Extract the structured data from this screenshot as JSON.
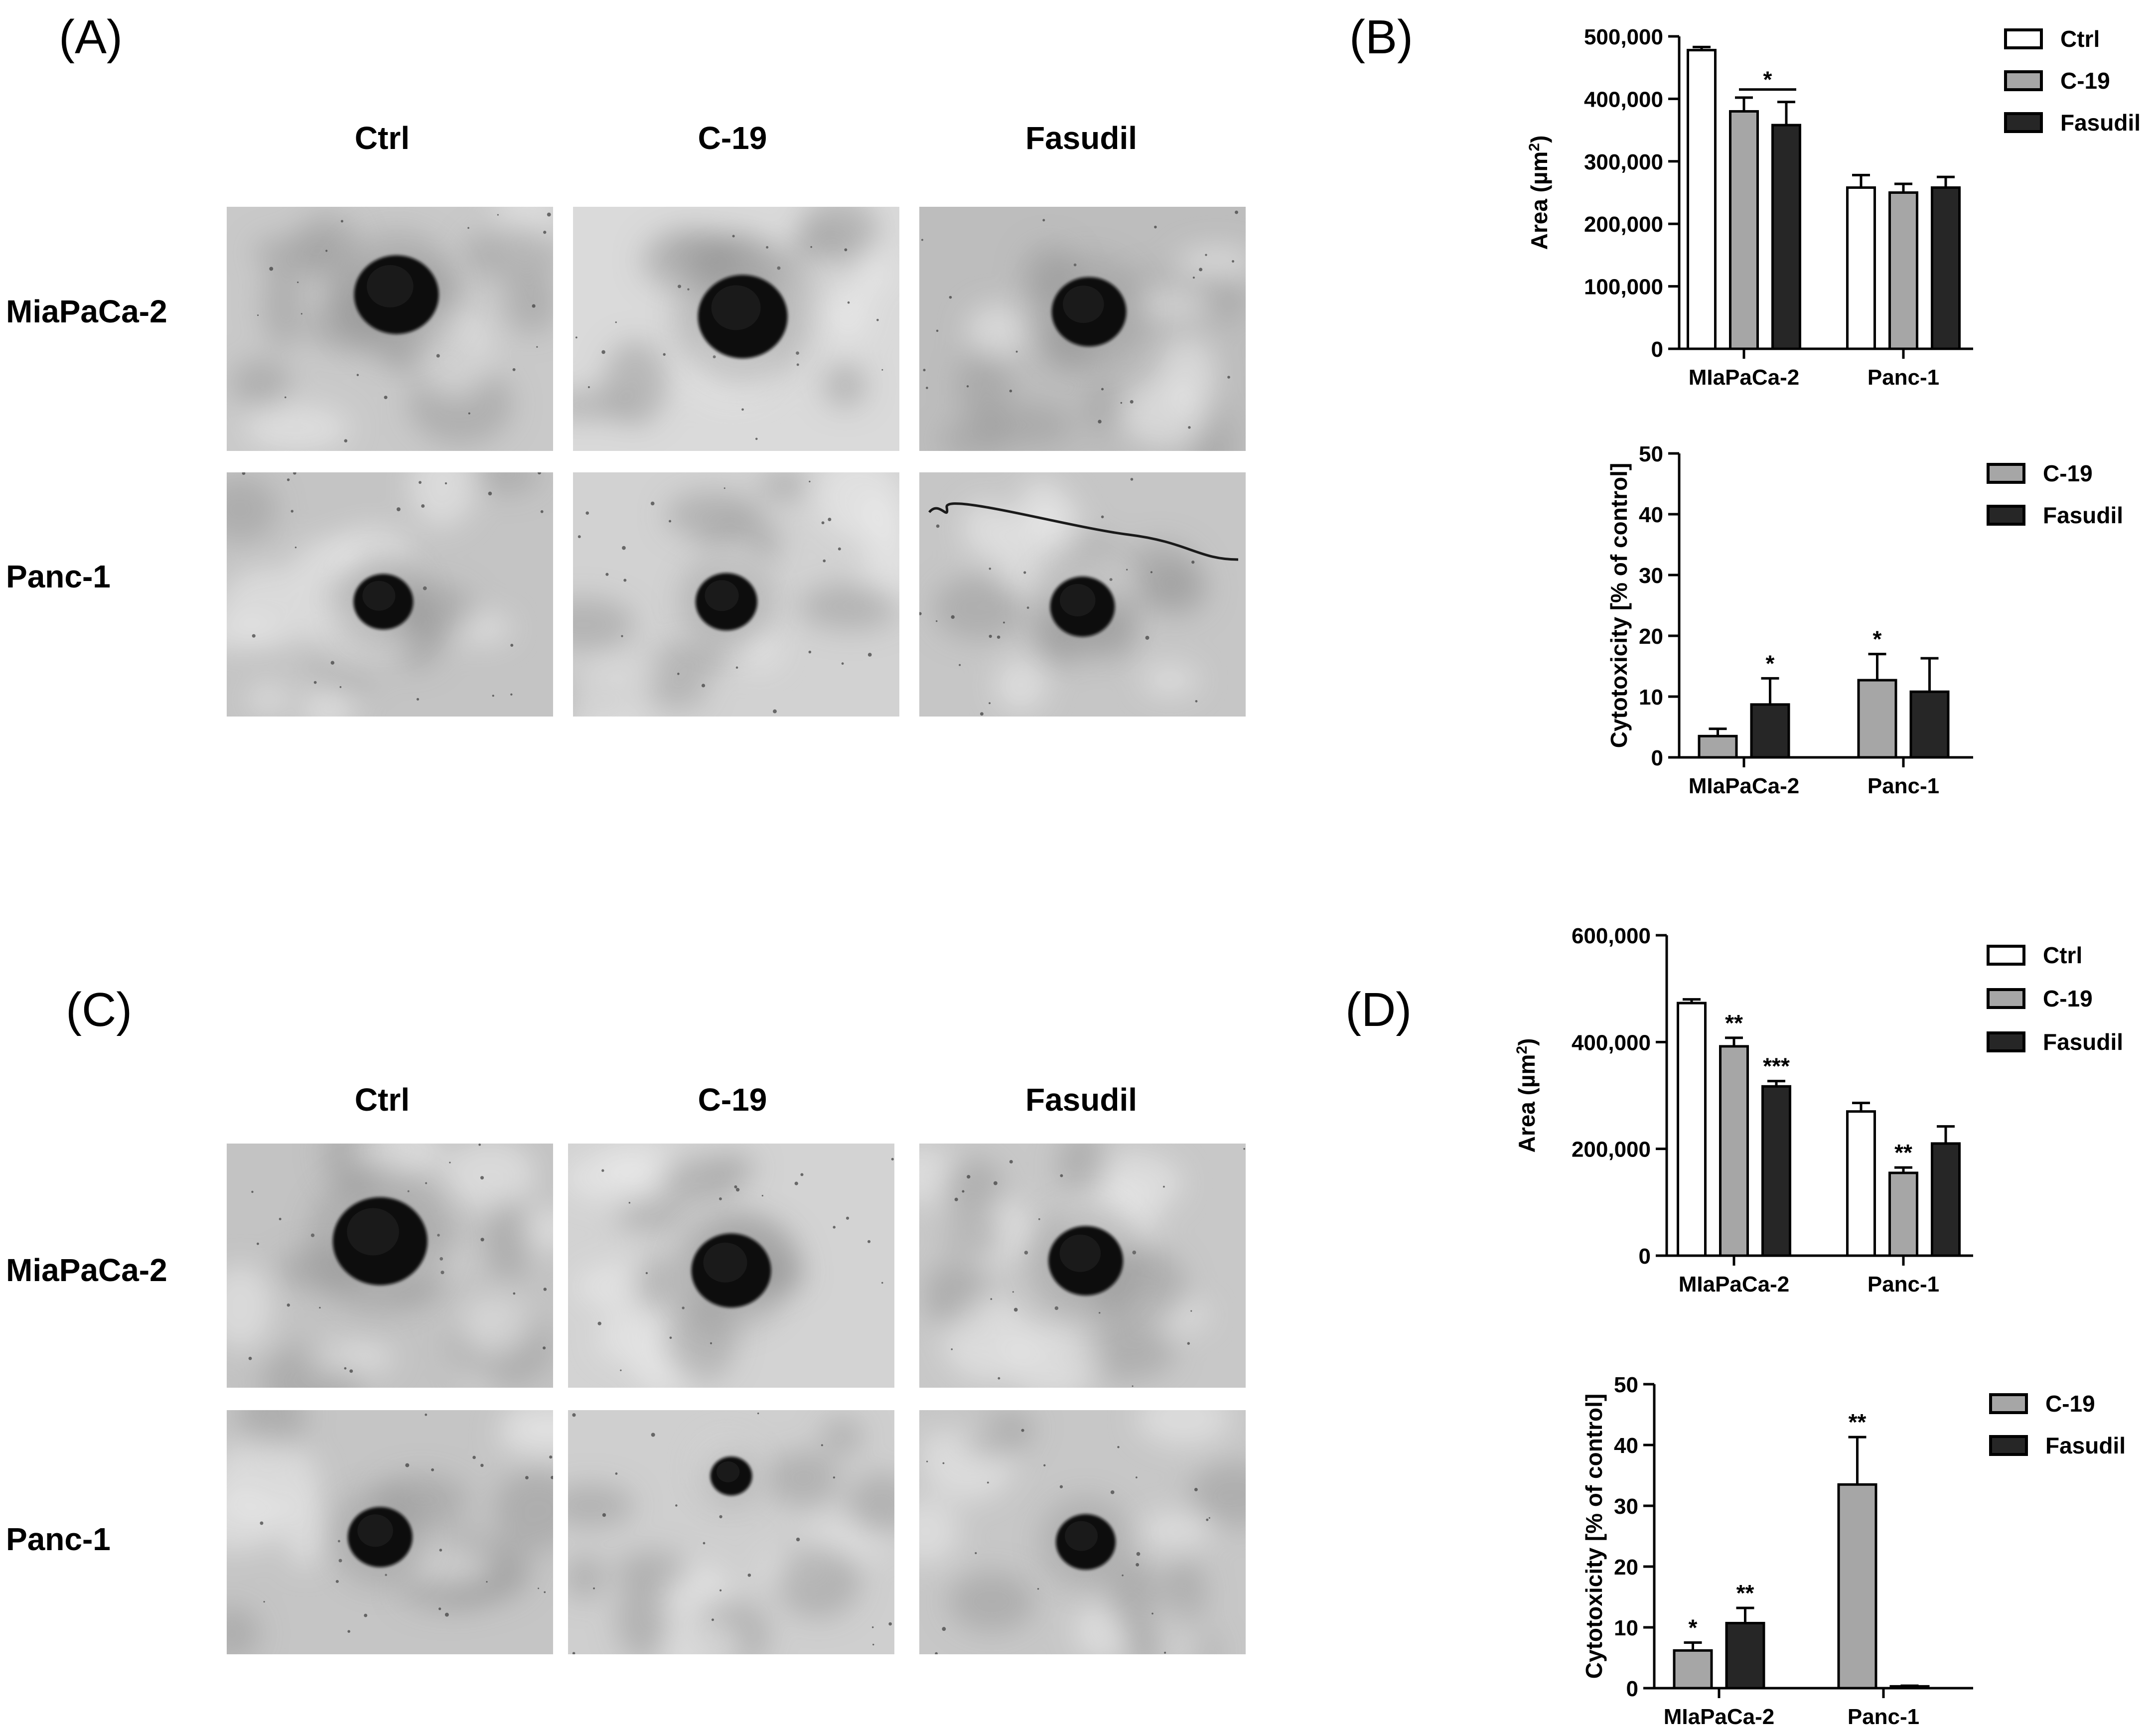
{
  "panels": {
    "a": {
      "letter": "(A)",
      "columns": [
        "Ctrl",
        "C-19",
        "Fasudil"
      ],
      "rows": [
        "MiaPaCa-2",
        "Panc-1"
      ]
    },
    "b": {
      "letter": "(B)"
    },
    "c": {
      "letter": "(C)",
      "columns": [
        "Ctrl",
        "C-19",
        "Fasudil"
      ],
      "rows": [
        "MiaPaCa-2",
        "Panc-1"
      ]
    },
    "d": {
      "letter": "(D)"
    }
  },
  "colors": {
    "Ctrl": "#ffffff",
    "C-19": "#a6a6a6",
    "Fasudil": "#262626",
    "axis": "#000000"
  },
  "chart_data": [
    {
      "id": "B-area",
      "type": "bar",
      "categories": [
        "MIaPaCa-2",
        "Panc-1"
      ],
      "series": [
        {
          "name": "Ctrl",
          "values": [
            478000,
            258000
          ],
          "errors": [
            5000,
            20000
          ]
        },
        {
          "name": "C-19",
          "values": [
            380000,
            250000
          ],
          "errors": [
            22000,
            14000
          ]
        },
        {
          "name": "Fasudil",
          "values": [
            358000,
            258000
          ],
          "errors": [
            37000,
            17000
          ]
        }
      ],
      "ylabel": "Area (µm²)",
      "ylim": [
        0,
        500000
      ],
      "yticks": [
        0,
        100000,
        200000,
        300000,
        400000,
        500000
      ],
      "ytick_labels": [
        "0",
        "100,000",
        "200,000",
        "300,000",
        "400,000",
        "500,000"
      ],
      "legend": "top-right",
      "annotations": [
        {
          "text": "*",
          "type": "bracket",
          "category": 0,
          "from_series": 1,
          "to_series": 2,
          "y": 415000
        }
      ]
    },
    {
      "id": "B-cyto",
      "type": "bar",
      "categories": [
        "MIaPaCa-2",
        "Panc-1"
      ],
      "series": [
        {
          "name": "C-19",
          "values": [
            3.5,
            12.7
          ],
          "errors": [
            1.2,
            4.3
          ]
        },
        {
          "name": "Fasudil",
          "values": [
            8.7,
            10.8
          ],
          "errors": [
            4.3,
            5.5
          ]
        }
      ],
      "ylabel": "Cytotoxicity [% of control]",
      "ylim": [
        0,
        50
      ],
      "yticks": [
        0,
        10,
        20,
        30,
        40,
        50
      ],
      "ytick_labels": [
        "0",
        "10",
        "20",
        "30",
        "40",
        "50"
      ],
      "legend": "top-right",
      "annotations": [
        {
          "text": "*",
          "category": 0,
          "series": 1
        },
        {
          "text": "*",
          "category": 1,
          "series": 0
        }
      ]
    },
    {
      "id": "D-area",
      "type": "bar",
      "categories": [
        "MIaPaCa-2",
        "Panc-1"
      ],
      "series": [
        {
          "name": "Ctrl",
          "values": [
            473000,
            270000
          ],
          "errors": [
            7000,
            16000
          ]
        },
        {
          "name": "C-19",
          "values": [
            392000,
            155000
          ],
          "errors": [
            16000,
            10000
          ]
        },
        {
          "name": "Fasudil",
          "values": [
            317000,
            210000
          ],
          "errors": [
            10000,
            32000
          ]
        }
      ],
      "ylabel": "Area (µm²)",
      "ylim": [
        0,
        600000
      ],
      "yticks": [
        0,
        200000,
        400000,
        600000
      ],
      "ytick_labels": [
        "0",
        "200,000",
        "400,000",
        "600,000"
      ],
      "legend": "top-right",
      "annotations": [
        {
          "text": "**",
          "category": 0,
          "series": 1
        },
        {
          "text": "***",
          "category": 0,
          "series": 2
        },
        {
          "text": "**",
          "category": 1,
          "series": 1
        }
      ]
    },
    {
      "id": "D-cyto",
      "type": "bar",
      "categories": [
        "MIaPaCa-2",
        "Panc-1"
      ],
      "series": [
        {
          "name": "C-19",
          "values": [
            6.2,
            33.5
          ],
          "errors": [
            1.3,
            7.8
          ]
        },
        {
          "name": "Fasudil",
          "values": [
            10.7,
            0.3
          ],
          "errors": [
            2.5,
            0.1
          ]
        }
      ],
      "ylabel": "Cytotoxicity [% of control]",
      "ylim": [
        0,
        50
      ],
      "yticks": [
        0,
        10,
        20,
        30,
        40,
        50
      ],
      "ytick_labels": [
        "0",
        "10",
        "20",
        "30",
        "40",
        "50"
      ],
      "legend": "top-right",
      "annotations": [
        {
          "text": "*",
          "category": 0,
          "series": 0
        },
        {
          "text": "**",
          "category": 0,
          "series": 1
        },
        {
          "text": "**",
          "category": 1,
          "series": 0
        }
      ]
    }
  ]
}
